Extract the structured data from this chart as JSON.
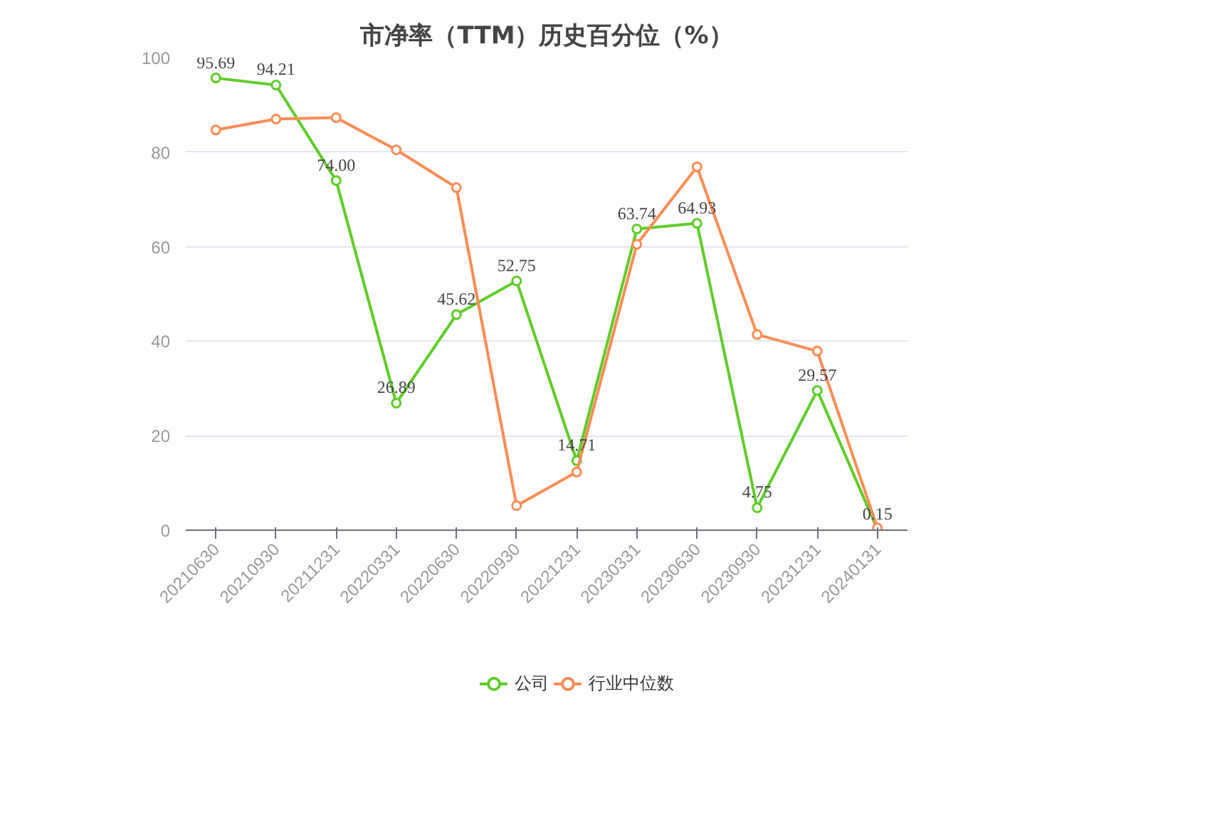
{
  "chart_data": {
    "type": "line",
    "title": "市净率（TTM）历史百分位（%）",
    "categories": [
      "20210630",
      "20210930",
      "20211231",
      "20220331",
      "20220630",
      "20220930",
      "20221231",
      "20230331",
      "20230630",
      "20230930",
      "20231231",
      "20240131"
    ],
    "series": [
      {
        "name": "公司",
        "color": "#5fcc29",
        "values": [
          95.69,
          94.21,
          74.0,
          26.89,
          45.62,
          52.75,
          14.71,
          63.74,
          64.93,
          4.75,
          29.57,
          0.15
        ],
        "value_labels": [
          "95.69",
          "94.21",
          "74.00",
          "26.89",
          "45.62",
          "52.75",
          "14.71",
          "63.74",
          "64.93",
          "4.75",
          "29.57",
          "0.15"
        ]
      },
      {
        "name": "行业中位数",
        "color": "#fa8c55",
        "values": [
          84.7,
          87.0,
          87.3,
          80.5,
          72.5,
          5.2,
          12.3,
          60.5,
          76.9,
          41.4,
          37.9,
          0.5
        ]
      }
    ],
    "ylim": [
      0,
      100
    ],
    "yticks": [
      0,
      20,
      40,
      60,
      80,
      100
    ],
    "grid": "y",
    "legend": "bottom",
    "marker": "circle",
    "line_style": "solid"
  }
}
